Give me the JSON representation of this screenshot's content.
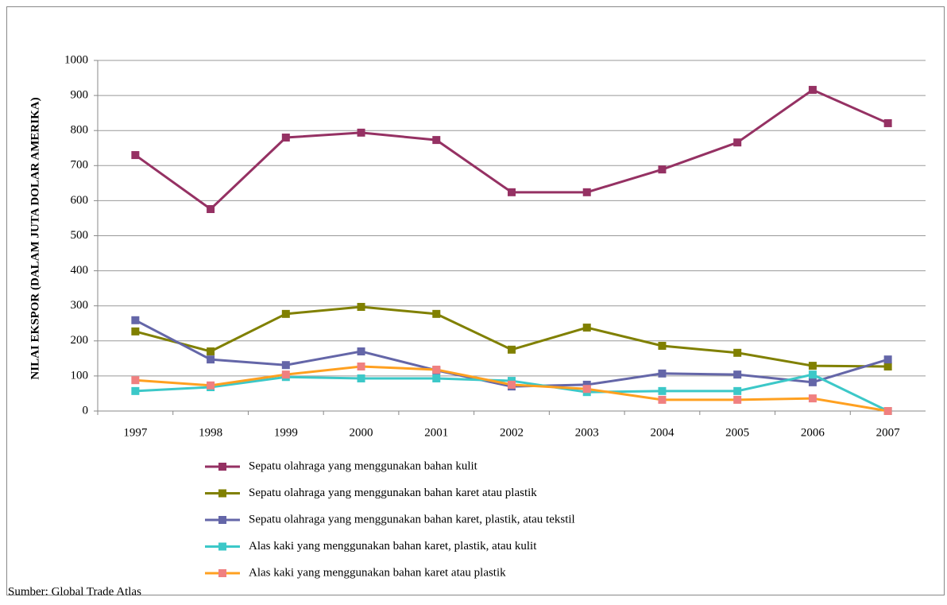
{
  "chart_data": {
    "type": "line",
    "y_axis_label": "NILAI EKSPOR (DALAM JUTA DOLAR AMERIKA)",
    "source": "Sumber: Global Trade Atlas",
    "categories": [
      "1997",
      "1998",
      "1999",
      "2000",
      "2001",
      "2002",
      "2003",
      "2004",
      "2005",
      "2006",
      "2007"
    ],
    "ylim": [
      0,
      1000
    ],
    "yticks": [
      0,
      100,
      200,
      300,
      400,
      500,
      600,
      700,
      800,
      900,
      1000
    ],
    "grid": true,
    "series": [
      {
        "name": "Sepatu olahraga yang menggunakan bahan kulit",
        "color": "#953163",
        "marker_color": "#953163",
        "values": [
          730,
          576,
          780,
          794,
          773,
          624,
          624,
          689,
          766,
          916,
          821
        ]
      },
      {
        "name": "Sepatu olahraga yang menggunakan bahan karet atau plastik",
        "color": "#808000",
        "marker_color": "#808000",
        "values": [
          227,
          170,
          277,
          297,
          277,
          175,
          238,
          186,
          166,
          129,
          127
        ]
      },
      {
        "name": "Sepatu olahraga yang menggunakan bahan karet, plastik, atau tekstil",
        "color": "#6466a8",
        "marker_color": "#6466a8",
        "values": [
          259,
          147,
          131,
          170,
          116,
          70,
          75,
          107,
          104,
          82,
          147
        ]
      },
      {
        "name": "Alas kaki yang menggunakan bahan karet, plastik, atau kulit",
        "color": "#3cc8c8",
        "marker_color": "#3cc8c8",
        "values": [
          57,
          68,
          97,
          93,
          93,
          86,
          54,
          57,
          57,
          104,
          0
        ]
      },
      {
        "name": "Alas kaki yang menggunakan bahan karet atau plastik",
        "color": "#ffa020",
        "marker_color": "#f08080",
        "values": [
          88,
          73,
          104,
          127,
          118,
          75,
          63,
          32,
          32,
          36,
          0
        ]
      }
    ]
  }
}
